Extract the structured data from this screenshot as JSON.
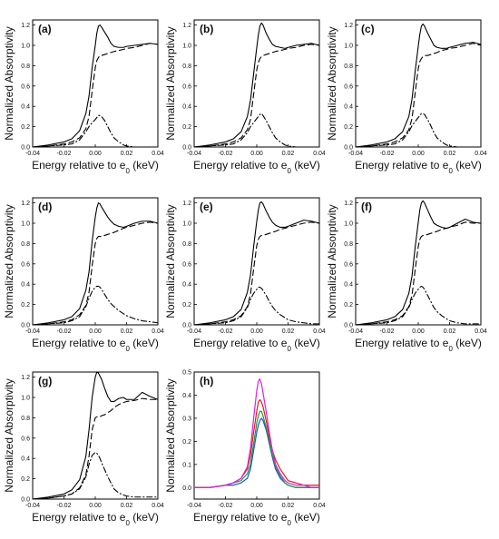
{
  "axis": {
    "xlabel_main": "Energy relative to e",
    "xlabel_sub": "0",
    "xlabel_unit": " (keV)",
    "ylabel": "Normalized Absorptivity",
    "xticks": [
      "-0.04",
      "-0.02",
      "0.00",
      "0.02",
      "0.04"
    ]
  },
  "chart_data": [
    {
      "type": "line",
      "label": "(a)",
      "xlim": [
        -0.04,
        0.04
      ],
      "ylim": [
        0,
        1.25
      ],
      "yticks": [
        "0.0",
        "0.2",
        "0.4",
        "0.6",
        "0.8",
        "1.0",
        "1.2"
      ],
      "x": [
        -0.04,
        -0.03,
        -0.02,
        -0.015,
        -0.01,
        -0.006,
        -0.004,
        -0.002,
        0.0,
        0.001,
        0.002,
        0.003,
        0.004,
        0.006,
        0.008,
        0.01,
        0.012,
        0.015,
        0.018,
        0.02,
        0.025,
        0.03,
        0.035,
        0.04
      ],
      "series": [
        {
          "style": "solid",
          "values": [
            0.0,
            0.02,
            0.05,
            0.08,
            0.16,
            0.33,
            0.5,
            0.78,
            1.0,
            1.12,
            1.19,
            1.2,
            1.18,
            1.13,
            1.08,
            1.02,
            0.99,
            0.98,
            0.98,
            0.99,
            1.0,
            1.01,
            1.02,
            1.01
          ]
        },
        {
          "style": "dash",
          "values": [
            0.0,
            0.01,
            0.03,
            0.05,
            0.09,
            0.18,
            0.3,
            0.55,
            0.78,
            0.85,
            0.88,
            0.9,
            0.9,
            0.91,
            0.92,
            0.93,
            0.94,
            0.95,
            0.96,
            0.97,
            0.98,
            1.0,
            1.02,
            1.01
          ]
        },
        {
          "style": "dashdot",
          "values": [
            0.0,
            0.01,
            0.02,
            0.03,
            0.07,
            0.15,
            0.2,
            0.24,
            0.27,
            0.29,
            0.31,
            0.31,
            0.3,
            0.26,
            0.2,
            0.14,
            0.09,
            0.05,
            0.02,
            0.01,
            0.0,
            0.0,
            0.0,
            0.0
          ]
        }
      ]
    },
    {
      "type": "line",
      "label": "(b)",
      "xlim": [
        -0.04,
        0.04
      ],
      "ylim": [
        0,
        1.25
      ],
      "yticks": [
        "0.0",
        "0.2",
        "0.4",
        "0.6",
        "0.8",
        "1.0",
        "1.2"
      ],
      "x": [
        -0.04,
        -0.03,
        -0.02,
        -0.015,
        -0.01,
        -0.006,
        -0.004,
        -0.002,
        0.0,
        0.001,
        0.002,
        0.003,
        0.004,
        0.006,
        0.008,
        0.01,
        0.012,
        0.015,
        0.018,
        0.02,
        0.025,
        0.03,
        0.035,
        0.04
      ],
      "series": [
        {
          "style": "solid",
          "values": [
            0.0,
            0.02,
            0.05,
            0.08,
            0.15,
            0.3,
            0.46,
            0.72,
            0.98,
            1.1,
            1.19,
            1.22,
            1.2,
            1.12,
            1.06,
            1.01,
            0.99,
            0.98,
            0.97,
            0.98,
            1.0,
            1.01,
            1.02,
            1.0
          ]
        },
        {
          "style": "dash",
          "values": [
            0.0,
            0.01,
            0.03,
            0.05,
            0.09,
            0.17,
            0.27,
            0.52,
            0.76,
            0.83,
            0.87,
            0.89,
            0.9,
            0.91,
            0.92,
            0.93,
            0.94,
            0.95,
            0.96,
            0.97,
            0.98,
            1.0,
            1.01,
            1.0
          ]
        },
        {
          "style": "dashdot",
          "values": [
            0.0,
            0.01,
            0.02,
            0.03,
            0.07,
            0.14,
            0.2,
            0.24,
            0.28,
            0.3,
            0.32,
            0.33,
            0.31,
            0.26,
            0.2,
            0.14,
            0.09,
            0.05,
            0.02,
            0.01,
            0.0,
            0.0,
            0.0,
            0.0
          ]
        }
      ]
    },
    {
      "type": "line",
      "label": "(c)",
      "xlim": [
        -0.04,
        0.04
      ],
      "ylim": [
        0,
        1.25
      ],
      "yticks": [
        "0.0",
        "0.2",
        "0.4",
        "0.6",
        "0.8",
        "1.0",
        "1.2"
      ],
      "x": [
        -0.04,
        -0.03,
        -0.02,
        -0.015,
        -0.01,
        -0.006,
        -0.004,
        -0.002,
        0.0,
        0.001,
        0.002,
        0.003,
        0.004,
        0.006,
        0.008,
        0.01,
        0.012,
        0.015,
        0.018,
        0.02,
        0.025,
        0.03,
        0.035,
        0.04
      ],
      "series": [
        {
          "style": "solid",
          "values": [
            0.0,
            0.02,
            0.05,
            0.08,
            0.15,
            0.3,
            0.47,
            0.74,
            0.99,
            1.11,
            1.19,
            1.21,
            1.19,
            1.12,
            1.06,
            1.0,
            0.98,
            0.97,
            0.97,
            0.98,
            1.0,
            1.02,
            1.03,
            1.01
          ]
        },
        {
          "style": "dash",
          "values": [
            0.0,
            0.01,
            0.03,
            0.05,
            0.09,
            0.17,
            0.28,
            0.53,
            0.77,
            0.84,
            0.87,
            0.89,
            0.9,
            0.9,
            0.91,
            0.92,
            0.93,
            0.95,
            0.96,
            0.97,
            0.98,
            1.0,
            1.02,
            1.0
          ]
        },
        {
          "style": "dashdot",
          "values": [
            0.0,
            0.01,
            0.02,
            0.03,
            0.07,
            0.15,
            0.21,
            0.25,
            0.29,
            0.31,
            0.33,
            0.33,
            0.32,
            0.27,
            0.21,
            0.14,
            0.09,
            0.05,
            0.02,
            0.01,
            0.0,
            0.0,
            0.0,
            0.0
          ]
        }
      ]
    },
    {
      "type": "line",
      "label": "(d)",
      "xlim": [
        -0.04,
        0.04
      ],
      "ylim": [
        0,
        1.25
      ],
      "yticks": [
        "0.0",
        "0.2",
        "0.4",
        "0.6",
        "0.8",
        "1.0",
        "1.2"
      ],
      "x": [
        -0.04,
        -0.03,
        -0.02,
        -0.015,
        -0.01,
        -0.006,
        -0.004,
        -0.002,
        0.0,
        0.001,
        0.002,
        0.003,
        0.004,
        0.006,
        0.008,
        0.01,
        0.012,
        0.015,
        0.018,
        0.02,
        0.025,
        0.03,
        0.035,
        0.04
      ],
      "series": [
        {
          "style": "solid",
          "values": [
            0.0,
            0.02,
            0.05,
            0.08,
            0.16,
            0.34,
            0.52,
            0.82,
            1.06,
            1.15,
            1.2,
            1.19,
            1.16,
            1.11,
            1.06,
            1.02,
            0.99,
            0.97,
            0.96,
            0.97,
            1.0,
            1.02,
            1.02,
            1.0
          ]
        },
        {
          "style": "dash",
          "values": [
            0.0,
            0.01,
            0.03,
            0.05,
            0.1,
            0.19,
            0.32,
            0.58,
            0.8,
            0.85,
            0.87,
            0.87,
            0.87,
            0.88,
            0.89,
            0.9,
            0.91,
            0.93,
            0.95,
            0.96,
            0.98,
            1.0,
            1.01,
            1.0
          ]
        },
        {
          "style": "dashdot",
          "values": [
            0.0,
            0.01,
            0.02,
            0.04,
            0.08,
            0.18,
            0.26,
            0.33,
            0.37,
            0.38,
            0.38,
            0.37,
            0.35,
            0.3,
            0.25,
            0.21,
            0.18,
            0.14,
            0.11,
            0.09,
            0.06,
            0.04,
            0.03,
            0.02
          ]
        }
      ]
    },
    {
      "type": "line",
      "label": "(e)",
      "xlim": [
        -0.04,
        0.04
      ],
      "ylim": [
        0,
        1.25
      ],
      "yticks": [
        "0.0",
        "0.2",
        "0.4",
        "0.6",
        "0.8",
        "1.0",
        "1.2"
      ],
      "x": [
        -0.04,
        -0.03,
        -0.02,
        -0.015,
        -0.01,
        -0.006,
        -0.004,
        -0.002,
        0.0,
        0.001,
        0.002,
        0.003,
        0.004,
        0.006,
        0.008,
        0.01,
        0.012,
        0.015,
        0.018,
        0.02,
        0.025,
        0.03,
        0.035,
        0.04
      ],
      "series": [
        {
          "style": "solid",
          "values": [
            0.0,
            0.02,
            0.05,
            0.08,
            0.15,
            0.32,
            0.49,
            0.77,
            1.02,
            1.13,
            1.2,
            1.21,
            1.19,
            1.12,
            1.06,
            1.01,
            0.98,
            0.96,
            0.96,
            0.97,
            1.0,
            1.03,
            1.02,
            1.0
          ]
        },
        {
          "style": "dash",
          "values": [
            0.0,
            0.01,
            0.03,
            0.05,
            0.09,
            0.18,
            0.3,
            0.55,
            0.78,
            0.84,
            0.87,
            0.88,
            0.88,
            0.89,
            0.9,
            0.91,
            0.92,
            0.94,
            0.95,
            0.96,
            0.98,
            1.0,
            1.01,
            1.0
          ]
        },
        {
          "style": "dashdot",
          "values": [
            0.0,
            0.01,
            0.02,
            0.04,
            0.08,
            0.17,
            0.25,
            0.31,
            0.35,
            0.37,
            0.37,
            0.36,
            0.34,
            0.29,
            0.23,
            0.18,
            0.14,
            0.1,
            0.07,
            0.05,
            0.03,
            0.02,
            0.01,
            0.01
          ]
        }
      ]
    },
    {
      "type": "line",
      "label": "(f)",
      "xlim": [
        -0.04,
        0.04
      ],
      "ylim": [
        0,
        1.25
      ],
      "yticks": [
        "0.0",
        "0.2",
        "0.4",
        "0.6",
        "0.8",
        "1.0",
        "1.2"
      ],
      "x": [
        -0.04,
        -0.03,
        -0.02,
        -0.015,
        -0.01,
        -0.006,
        -0.004,
        -0.002,
        0.0,
        0.001,
        0.002,
        0.003,
        0.004,
        0.006,
        0.008,
        0.01,
        0.012,
        0.015,
        0.018,
        0.02,
        0.025,
        0.03,
        0.035,
        0.04
      ],
      "series": [
        {
          "style": "solid",
          "values": [
            0.0,
            0.02,
            0.05,
            0.08,
            0.15,
            0.31,
            0.48,
            0.76,
            1.01,
            1.13,
            1.2,
            1.22,
            1.2,
            1.13,
            1.06,
            1.0,
            0.98,
            0.96,
            0.95,
            0.96,
            1.0,
            1.04,
            1.01,
            1.0
          ]
        },
        {
          "style": "dash",
          "values": [
            0.0,
            0.01,
            0.03,
            0.05,
            0.09,
            0.18,
            0.29,
            0.54,
            0.77,
            0.84,
            0.87,
            0.88,
            0.88,
            0.89,
            0.9,
            0.91,
            0.92,
            0.94,
            0.95,
            0.96,
            0.98,
            1.01,
            1.0,
            1.0
          ]
        },
        {
          "style": "dashdot",
          "values": [
            0.0,
            0.01,
            0.02,
            0.04,
            0.08,
            0.17,
            0.25,
            0.31,
            0.35,
            0.37,
            0.38,
            0.37,
            0.35,
            0.29,
            0.23,
            0.17,
            0.13,
            0.09,
            0.06,
            0.04,
            0.02,
            0.01,
            0.01,
            0.01
          ]
        }
      ]
    },
    {
      "type": "line",
      "label": "(g)",
      "xlim": [
        -0.04,
        0.04
      ],
      "ylim": [
        0,
        1.25
      ],
      "yticks": [
        "0.0",
        "0.2",
        "0.4",
        "0.6",
        "0.8",
        "1.0",
        "1.2"
      ],
      "x": [
        -0.04,
        -0.03,
        -0.02,
        -0.015,
        -0.01,
        -0.006,
        -0.004,
        -0.002,
        0.0,
        0.001,
        0.002,
        0.003,
        0.004,
        0.006,
        0.008,
        0.01,
        0.012,
        0.015,
        0.018,
        0.02,
        0.025,
        0.03,
        0.035,
        0.04
      ],
      "series": [
        {
          "style": "solid",
          "values": [
            0.0,
            0.02,
            0.05,
            0.09,
            0.19,
            0.42,
            0.68,
            1.0,
            1.2,
            1.25,
            1.24,
            1.21,
            1.18,
            1.09,
            1.01,
            0.96,
            0.96,
            0.99,
            1.0,
            0.98,
            0.98,
            1.05,
            1.01,
            0.98
          ]
        },
        {
          "style": "dash",
          "values": [
            0.0,
            0.01,
            0.03,
            0.05,
            0.11,
            0.24,
            0.42,
            0.68,
            0.8,
            0.81,
            0.81,
            0.81,
            0.82,
            0.83,
            0.85,
            0.87,
            0.9,
            0.93,
            0.95,
            0.96,
            0.97,
            0.99,
            0.98,
            0.98
          ]
        },
        {
          "style": "dashdot",
          "values": [
            0.0,
            0.01,
            0.03,
            0.05,
            0.1,
            0.22,
            0.34,
            0.43,
            0.46,
            0.45,
            0.43,
            0.4,
            0.36,
            0.29,
            0.22,
            0.16,
            0.1,
            0.06,
            0.04,
            0.03,
            0.02,
            0.02,
            0.02,
            0.02
          ]
        }
      ]
    },
    {
      "type": "line",
      "label": "(h)",
      "xlim": [
        -0.04,
        0.04
      ],
      "ylim": [
        -0.05,
        0.5
      ],
      "yticks": [
        "0.0",
        "0.1",
        "0.2",
        "0.3",
        "0.4",
        "0.5"
      ],
      "x": [
        -0.04,
        -0.03,
        -0.02,
        -0.015,
        -0.01,
        -0.006,
        -0.004,
        -0.002,
        0.0,
        0.001,
        0.002,
        0.003,
        0.004,
        0.006,
        0.008,
        0.01,
        0.012,
        0.015,
        0.018,
        0.02,
        0.025,
        0.03,
        0.035,
        0.04
      ],
      "series": [
        {
          "color": "#1f4fd0",
          "values": [
            0.0,
            0.0,
            0.01,
            0.01,
            0.02,
            0.04,
            0.08,
            0.16,
            0.24,
            0.27,
            0.29,
            0.3,
            0.29,
            0.25,
            0.19,
            0.13,
            0.08,
            0.04,
            0.02,
            0.01,
            0.0,
            0.0,
            0.0,
            0.0
          ]
        },
        {
          "color": "#1a9a3a",
          "values": [
            0.0,
            0.0,
            0.01,
            0.02,
            0.03,
            0.06,
            0.1,
            0.19,
            0.28,
            0.31,
            0.33,
            0.33,
            0.31,
            0.26,
            0.2,
            0.14,
            0.09,
            0.05,
            0.02,
            0.01,
            0.0,
            0.0,
            0.0,
            0.0
          ]
        },
        {
          "color": "#e01a1a",
          "values": [
            0.0,
            0.0,
            0.01,
            0.02,
            0.04,
            0.08,
            0.14,
            0.24,
            0.33,
            0.37,
            0.38,
            0.37,
            0.35,
            0.29,
            0.22,
            0.16,
            0.12,
            0.08,
            0.05,
            0.03,
            0.02,
            0.01,
            0.01,
            0.01
          ]
        },
        {
          "color": "#e020e0",
          "values": [
            0.0,
            0.0,
            0.01,
            0.02,
            0.04,
            0.09,
            0.17,
            0.3,
            0.42,
            0.46,
            0.47,
            0.45,
            0.41,
            0.33,
            0.24,
            0.16,
            0.1,
            0.06,
            0.03,
            0.02,
            0.01,
            0.01,
            0.0,
            0.0
          ]
        }
      ]
    }
  ]
}
